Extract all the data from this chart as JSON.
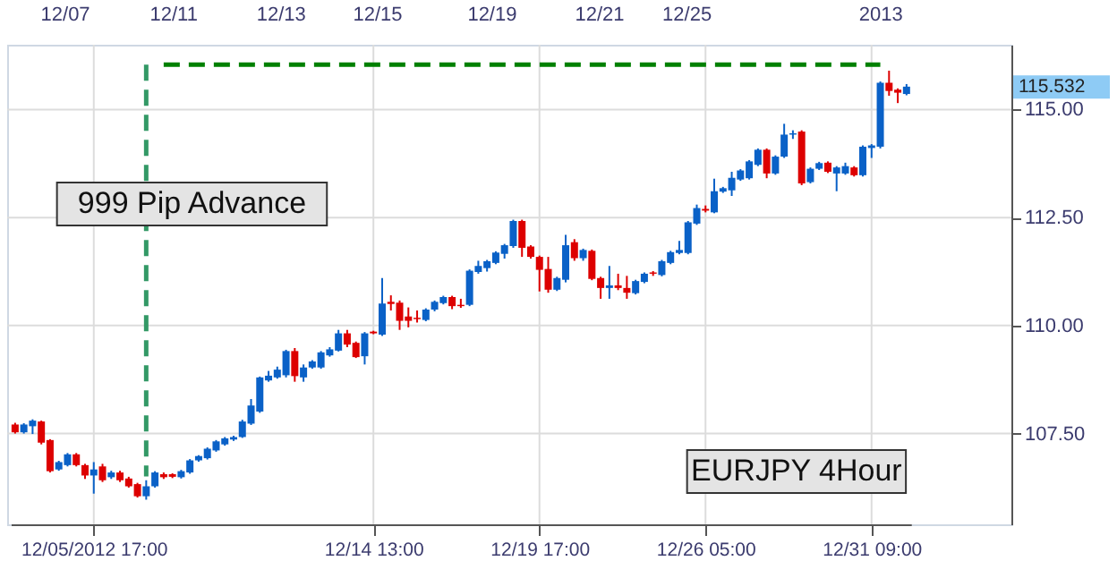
{
  "chart_data": {
    "type": "candlestick",
    "categories": [
      null,
      null,
      null,
      null,
      null,
      null,
      null,
      null,
      null,
      "12/05/2012 17:00",
      null,
      null,
      null,
      null,
      null,
      null,
      null,
      null,
      null,
      null,
      null,
      null,
      null,
      null,
      null,
      null,
      null,
      null,
      null,
      null,
      null,
      null,
      null,
      null,
      null,
      null,
      null,
      null,
      null,
      null,
      null,
      "12/14 13:00",
      null,
      null,
      null,
      null,
      null,
      null,
      null,
      null,
      null,
      null,
      null,
      null,
      null,
      null,
      null,
      null,
      null,
      null,
      "12/19 17:00",
      null,
      null,
      null,
      null,
      null,
      null,
      null,
      null,
      null,
      null,
      null,
      null,
      null,
      null,
      null,
      null,
      null,
      null,
      "12/26 05:00",
      null,
      null,
      null,
      null,
      null,
      null,
      null,
      null,
      null,
      null,
      null,
      null,
      null,
      null,
      null,
      null,
      null,
      null,
      "12/31 09:00",
      null,
      null,
      null,
      null
    ],
    "ohlc": [
      [
        107.71,
        107.75,
        107.5,
        107.53
      ],
      [
        107.53,
        107.74,
        107.5,
        107.71
      ],
      [
        107.67,
        107.83,
        107.49,
        107.8
      ],
      [
        107.78,
        107.8,
        107.25,
        107.29
      ],
      [
        107.35,
        107.37,
        106.6,
        106.63
      ],
      [
        106.67,
        106.87,
        106.64,
        106.84
      ],
      [
        106.77,
        107.05,
        106.74,
        107.02
      ],
      [
        107.02,
        107.05,
        106.74,
        106.77
      ],
      [
        106.77,
        106.8,
        106.45,
        106.53
      ],
      [
        106.53,
        106.84,
        106.11,
        106.67
      ],
      [
        106.74,
        106.8,
        106.38,
        106.42
      ],
      [
        106.49,
        106.64,
        106.45,
        106.6
      ],
      [
        106.6,
        106.64,
        106.38,
        106.42
      ],
      [
        106.46,
        106.5,
        106.25,
        106.28
      ],
      [
        106.33,
        106.36,
        106.02,
        106.05
      ],
      [
        106.05,
        106.42,
        105.97,
        106.28
      ],
      [
        106.28,
        106.63,
        106.25,
        106.6
      ],
      [
        106.56,
        106.6,
        106.45,
        106.49
      ],
      [
        106.56,
        106.58,
        106.47,
        106.5
      ],
      [
        106.49,
        106.66,
        106.46,
        106.63
      ],
      [
        106.6,
        106.91,
        106.57,
        106.88
      ],
      [
        106.88,
        107.0,
        106.85,
        106.98
      ],
      [
        106.93,
        107.18,
        106.9,
        107.15
      ],
      [
        107.11,
        107.35,
        107.08,
        107.32
      ],
      [
        107.25,
        107.42,
        107.22,
        107.39
      ],
      [
        107.36,
        107.45,
        107.33,
        107.42
      ],
      [
        107.42,
        107.82,
        107.4,
        107.78
      ],
      [
        107.73,
        108.3,
        107.7,
        108.15
      ],
      [
        108.01,
        108.82,
        107.98,
        108.8
      ],
      [
        108.73,
        108.95,
        108.7,
        108.84
      ],
      [
        108.8,
        109.05,
        108.77,
        108.98
      ],
      [
        108.85,
        109.44,
        108.8,
        109.41
      ],
      [
        109.41,
        109.48,
        108.7,
        108.83
      ],
      [
        108.8,
        109.1,
        108.7,
        109.03
      ],
      [
        109.03,
        109.2,
        109.0,
        109.17
      ],
      [
        109.03,
        109.41,
        109.0,
        109.38
      ],
      [
        109.31,
        109.5,
        109.28,
        109.45
      ],
      [
        109.42,
        109.9,
        109.4,
        109.82
      ],
      [
        109.82,
        109.9,
        109.5,
        109.56
      ],
      [
        109.6,
        109.63,
        109.25,
        109.27
      ],
      [
        109.29,
        109.85,
        109.1,
        109.82
      ],
      [
        109.86,
        109.88,
        109.8,
        109.82
      ],
      [
        109.79,
        111.1,
        109.76,
        110.51
      ],
      [
        110.55,
        110.7,
        110.35,
        110.5
      ],
      [
        110.53,
        110.58,
        109.9,
        110.11
      ],
      [
        110.21,
        110.42,
        109.96,
        110.11
      ],
      [
        110.18,
        110.35,
        110.07,
        110.15
      ],
      [
        110.13,
        110.4,
        110.1,
        110.37
      ],
      [
        110.37,
        110.58,
        110.33,
        110.55
      ],
      [
        110.52,
        110.69,
        110.49,
        110.66
      ],
      [
        110.66,
        110.69,
        110.38,
        110.45
      ],
      [
        110.48,
        110.62,
        110.41,
        110.45
      ],
      [
        110.48,
        111.3,
        110.45,
        111.27
      ],
      [
        111.24,
        111.5,
        111.2,
        111.38
      ],
      [
        111.33,
        111.52,
        111.25,
        111.49
      ],
      [
        111.45,
        111.72,
        111.42,
        111.69
      ],
      [
        111.66,
        111.89,
        111.55,
        111.86
      ],
      [
        111.84,
        112.45,
        111.8,
        112.42
      ],
      [
        112.42,
        112.45,
        111.59,
        111.8
      ],
      [
        111.83,
        111.86,
        111.55,
        111.59
      ],
      [
        111.59,
        111.62,
        110.79,
        111.29
      ],
      [
        111.31,
        111.59,
        110.76,
        110.83
      ],
      [
        110.83,
        111.13,
        110.8,
        111.1
      ],
      [
        111.06,
        112.1,
        111.0,
        111.86
      ],
      [
        111.93,
        112.0,
        111.5,
        111.56
      ],
      [
        111.56,
        111.78,
        111.5,
        111.75
      ],
      [
        111.73,
        111.76,
        111.05,
        111.08
      ],
      [
        111.1,
        111.13,
        110.62,
        110.87
      ],
      [
        110.87,
        111.38,
        110.62,
        110.93
      ],
      [
        110.93,
        111.2,
        110.82,
        110.87
      ],
      [
        110.87,
        111.15,
        110.62,
        110.76
      ],
      [
        110.75,
        111.06,
        110.72,
        111.03
      ],
      [
        111.01,
        111.23,
        110.98,
        111.2
      ],
      [
        111.23,
        111.26,
        111.15,
        111.2
      ],
      [
        111.17,
        111.52,
        111.14,
        111.49
      ],
      [
        111.45,
        111.73,
        111.42,
        111.7
      ],
      [
        111.68,
        111.96,
        111.65,
        111.75
      ],
      [
        111.68,
        112.42,
        111.65,
        112.39
      ],
      [
        112.36,
        112.8,
        112.33,
        112.72
      ],
      [
        112.7,
        112.78,
        112.62,
        112.66
      ],
      [
        112.62,
        113.4,
        112.6,
        113.11
      ],
      [
        113.1,
        113.21,
        113.07,
        113.18
      ],
      [
        113.13,
        113.56,
        113.0,
        113.42
      ],
      [
        113.38,
        113.62,
        113.35,
        113.59
      ],
      [
        113.41,
        113.83,
        113.38,
        113.8
      ],
      [
        113.72,
        114.1,
        113.69,
        114.07
      ],
      [
        114.07,
        114.1,
        113.41,
        113.52
      ],
      [
        113.52,
        113.94,
        113.49,
        113.91
      ],
      [
        113.91,
        114.67,
        113.88,
        114.42
      ],
      [
        114.42,
        114.52,
        114.32,
        114.45
      ],
      [
        114.49,
        114.52,
        113.25,
        113.29
      ],
      [
        113.32,
        113.66,
        113.29,
        113.63
      ],
      [
        113.63,
        113.79,
        113.6,
        113.76
      ],
      [
        113.77,
        113.8,
        113.53,
        113.56
      ],
      [
        113.52,
        113.69,
        113.11,
        113.66
      ],
      [
        113.52,
        113.77,
        113.49,
        113.69
      ],
      [
        113.66,
        113.69,
        113.45,
        113.48
      ],
      [
        113.48,
        114.17,
        113.45,
        114.14
      ],
      [
        114.11,
        114.2,
        113.88,
        114.17
      ],
      [
        114.14,
        115.65,
        114.1,
        115.62
      ],
      [
        115.62,
        115.9,
        115.32,
        115.43
      ],
      [
        115.46,
        115.49,
        115.15,
        115.39
      ],
      [
        115.36,
        115.59,
        115.33,
        115.53
      ]
    ],
    "colors": [
      "#dd0000",
      "#0a61c7",
      "#0a61c7",
      "#dd0000",
      "#dd0000",
      "#0a61c7",
      "#0a61c7",
      "#dd0000",
      "#dd0000",
      "#0a61c7",
      "#dd0000",
      "#0a61c7",
      "#dd0000",
      "#dd0000",
      "#dd0000",
      "#0a61c7",
      "#0a61c7",
      "#dd0000",
      "#dd0000",
      "#0a61c7",
      "#0a61c7",
      "#0a61c7",
      "#0a61c7",
      "#0a61c7",
      "#0a61c7",
      "#0a61c7",
      "#0a61c7",
      "#0a61c7",
      "#0a61c7",
      "#0a61c7",
      "#0a61c7",
      "#0a61c7",
      "#dd0000",
      "#0a61c7",
      "#0a61c7",
      "#0a61c7",
      "#0a61c7",
      "#0a61c7",
      "#dd0000",
      "#dd0000",
      "#0a61c7",
      "#dd0000",
      "#0a61c7",
      "#dd0000",
      "#dd0000",
      "#dd0000",
      "#dd0000",
      "#0a61c7",
      "#0a61c7",
      "#0a61c7",
      "#dd0000",
      "#dd0000",
      "#0a61c7",
      "#0a61c7",
      "#0a61c7",
      "#0a61c7",
      "#0a61c7",
      "#0a61c7",
      "#dd0000",
      "#dd0000",
      "#dd0000",
      "#dd0000",
      "#0a61c7",
      "#0a61c7",
      "#dd0000",
      "#0a61c7",
      "#dd0000",
      "#dd0000",
      "#0a61c7",
      "#dd0000",
      "#dd0000",
      "#0a61c7",
      "#0a61c7",
      "#dd0000",
      "#0a61c7",
      "#0a61c7",
      "#0a61c7",
      "#0a61c7",
      "#0a61c7",
      "#dd0000",
      "#0a61c7",
      "#0a61c7",
      "#0a61c7",
      "#0a61c7",
      "#0a61c7",
      "#0a61c7",
      "#dd0000",
      "#0a61c7",
      "#0a61c7",
      "#0a61c7",
      "#dd0000",
      "#0a61c7",
      "#0a61c7",
      "#dd0000",
      "#0a61c7",
      "#0a61c7",
      "#dd0000",
      "#0a61c7",
      "#0a61c7",
      "#0a61c7",
      "#dd0000",
      "#dd0000",
      "#0a61c7"
    ],
    "series": [
      {
        "type": "line",
        "color": "#008000",
        "line_style": "dashed",
        "values": [
          null,
          null,
          null,
          null,
          null,
          null,
          null,
          null,
          null,
          null,
          null,
          null,
          null,
          null,
          null,
          null,
          null,
          116.04,
          116.04,
          116.04,
          116.04,
          116.04,
          116.04,
          116.04,
          116.04,
          116.04,
          116.04,
          116.04,
          116.04,
          116.04,
          116.04,
          116.04,
          116.04,
          116.04,
          116.04,
          116.04,
          116.04,
          116.04,
          116.04,
          116.04,
          116.04,
          116.04,
          116.04,
          116.04,
          116.04,
          116.04,
          116.04,
          116.04,
          116.04,
          116.04,
          116.04,
          116.04,
          116.04,
          116.04,
          116.04,
          116.04,
          116.04,
          116.04,
          116.04,
          116.04,
          116.04,
          116.04,
          116.04,
          116.04,
          116.04,
          116.04,
          116.04,
          116.04,
          116.04,
          116.04,
          116.04,
          116.04,
          116.04,
          116.04,
          116.04,
          116.04,
          116.04,
          116.04,
          116.04,
          116.04,
          116.04,
          116.04,
          116.04,
          116.04,
          116.04,
          116.04,
          116.04,
          116.04,
          116.04,
          116.04,
          116.04,
          116.04,
          116.04,
          116.04,
          116.04,
          116.04,
          116.04,
          116.04,
          116.04,
          116.04,
          null,
          null,
          null
        ]
      }
    ],
    "ylim": [
      105.4,
      116.5
    ],
    "yticks": [
      {
        "value": 107.5,
        "label": "107.50"
      },
      {
        "value": 110,
        "label": "110.00"
      },
      {
        "value": 112.5,
        "label": "112.50"
      },
      {
        "value": 115,
        "label": "115.00"
      }
    ],
    "grid": true,
    "annotations": [
      "999 Pip Advance",
      "115.532",
      "EURJPY 4Hour",
      "12/07",
      "12/11",
      "12/13",
      "12/15",
      "12/19",
      "12/21",
      "12/25",
      "2013"
    ]
  }
}
